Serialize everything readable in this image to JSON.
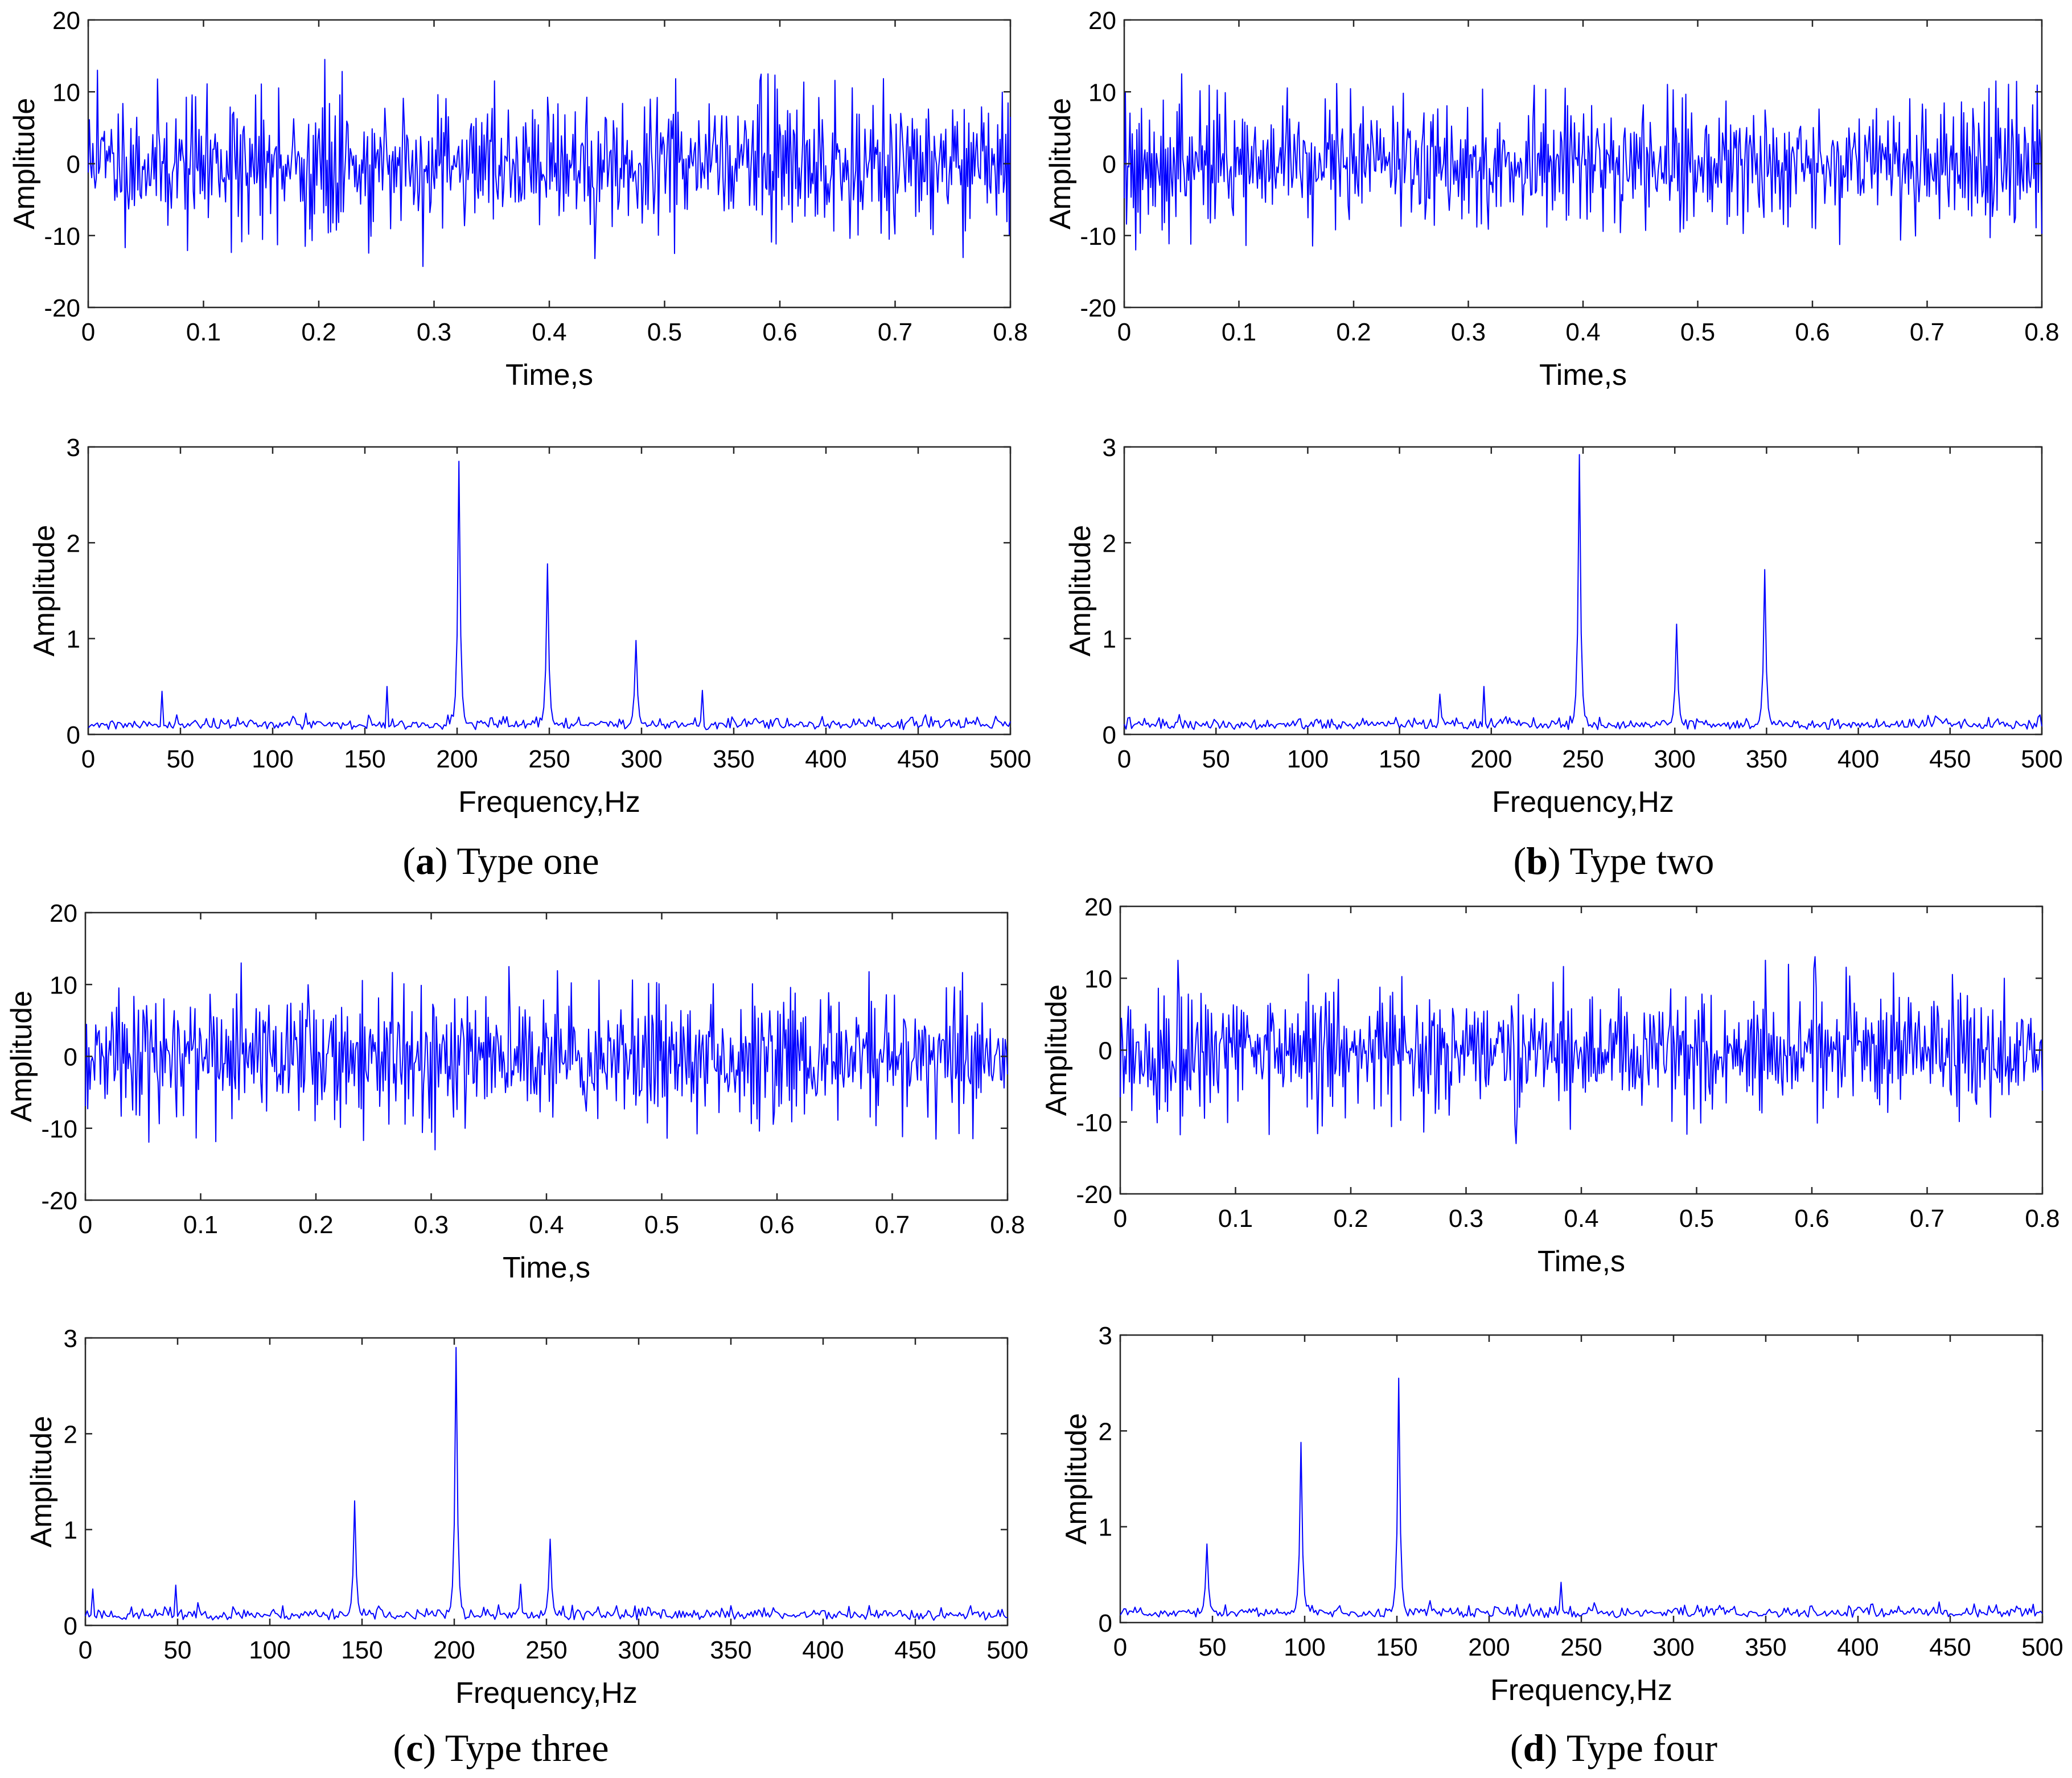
{
  "colors": {
    "trace": "#0000ff",
    "frame": "#262626",
    "text": "#000000"
  },
  "chart_data": [
    {
      "panel": "a",
      "type": "line",
      "id": "a-time",
      "xlabel": "Time,s",
      "ylabel": "Amplitude",
      "xlim": [
        0,
        0.8
      ],
      "ylim": [
        -20,
        20
      ],
      "xticks": [
        0,
        0.1,
        0.2,
        0.3,
        0.4,
        0.5,
        0.6,
        0.7,
        0.8
      ],
      "xtick_labels": [
        "0",
        "0.1",
        "0.2",
        "0.3",
        "0.4",
        "0.5",
        "0.6",
        "0.7",
        "0.8"
      ],
      "yticks": [
        -20,
        -10,
        0,
        10,
        20
      ],
      "ytick_labels": [
        "-20",
        "-10",
        "0",
        "10",
        "20"
      ],
      "signal": {
        "kind": "noise",
        "n": 800,
        "seed": 11,
        "rms": 5.2,
        "max_abs": 14.5,
        "extremes": [
          [
            0.205,
            14.5
          ],
          [
            0.29,
            -14.3
          ],
          [
            0.44,
            -13.2
          ],
          [
            0.188,
            -11.5
          ],
          [
            0.008,
            13
          ],
          [
            0.59,
            12.5
          ]
        ]
      }
    },
    {
      "panel": "a",
      "type": "line",
      "id": "a-freq",
      "xlabel": "Frequency,Hz",
      "ylabel": "Amplitude",
      "xlim": [
        0,
        500
      ],
      "ylim": [
        0,
        3
      ],
      "xticks": [
        0,
        50,
        100,
        150,
        200,
        250,
        300,
        350,
        400,
        450,
        500
      ],
      "xtick_labels": [
        "0",
        "50",
        "100",
        "150",
        "200",
        "250",
        "300",
        "350",
        "400",
        "450",
        "500"
      ],
      "yticks": [
        0,
        1,
        2,
        3
      ],
      "ytick_labels": [
        "0",
        "1",
        "2",
        "3"
      ],
      "spectrum": {
        "n": 500,
        "seed": 21,
        "floor": 0.14,
        "peaks": [
          [
            201,
            2.85
          ],
          [
            249,
            1.78
          ],
          [
            297,
            0.98
          ],
          [
            40,
            0.45
          ],
          [
            162,
            0.5
          ],
          [
            333,
            0.46
          ]
        ]
      }
    },
    {
      "panel": "b",
      "type": "line",
      "id": "b-time",
      "xlabel": "Time,s",
      "ylabel": "Amplitude",
      "xlim": [
        0,
        0.8
      ],
      "ylim": [
        -20,
        20
      ],
      "xticks": [
        0,
        0.1,
        0.2,
        0.3,
        0.4,
        0.5,
        0.6,
        0.7,
        0.8
      ],
      "xtick_labels": [
        "0",
        "0.1",
        "0.2",
        "0.3",
        "0.4",
        "0.5",
        "0.6",
        "0.7",
        "0.8"
      ],
      "yticks": [
        -20,
        -10,
        0,
        10,
        20
      ],
      "ytick_labels": [
        "-20",
        "-10",
        "0",
        "10",
        "20"
      ],
      "signal": {
        "kind": "noise",
        "n": 800,
        "seed": 12,
        "rms": 5.0,
        "max_abs": 12.5,
        "extremes": [
          [
            0.01,
            -12
          ],
          [
            0.05,
            12.5
          ],
          [
            0.76,
            11.5
          ],
          [
            0.058,
            -11.2
          ]
        ]
      }
    },
    {
      "panel": "b",
      "type": "line",
      "id": "b-freq",
      "xlabel": "Frequency,Hz",
      "ylabel": "Amplitude",
      "xlim": [
        0,
        500
      ],
      "ylim": [
        0,
        3
      ],
      "xticks": [
        0,
        50,
        100,
        150,
        200,
        250,
        300,
        350,
        400,
        450,
        500
      ],
      "xtick_labels": [
        "0",
        "50",
        "100",
        "150",
        "200",
        "250",
        "300",
        "350",
        "400",
        "450",
        "500"
      ],
      "yticks": [
        0,
        1,
        2,
        3
      ],
      "ytick_labels": [
        "0",
        "1",
        "2",
        "3"
      ],
      "spectrum": {
        "n": 500,
        "seed": 22,
        "floor": 0.14,
        "peaks": [
          [
            248,
            2.92
          ],
          [
            301,
            1.15
          ],
          [
            349,
            1.72
          ],
          [
            196,
            0.5
          ],
          [
            172,
            0.42
          ]
        ]
      }
    },
    {
      "panel": "c",
      "type": "line",
      "id": "c-time",
      "xlabel": "Time,s",
      "ylabel": "Amplitude",
      "xlim": [
        0,
        0.8
      ],
      "ylim": [
        -20,
        20
      ],
      "xticks": [
        0,
        0.1,
        0.2,
        0.3,
        0.4,
        0.5,
        0.6,
        0.7,
        0.8
      ],
      "xtick_labels": [
        "0",
        "0.1",
        "0.2",
        "0.3",
        "0.4",
        "0.5",
        "0.6",
        "0.7",
        "0.8"
      ],
      "yticks": [
        -20,
        -10,
        0,
        10,
        20
      ],
      "ytick_labels": [
        "-20",
        "-10",
        "0",
        "10",
        "20"
      ],
      "signal": {
        "kind": "noise",
        "n": 800,
        "seed": 13,
        "rms": 5.0,
        "max_abs": 13,
        "extremes": [
          [
            0.135,
            13
          ],
          [
            0.303,
            -13
          ],
          [
            0.367,
            12.5
          ],
          [
            0.738,
            -11.5
          ]
        ]
      }
    },
    {
      "panel": "c",
      "type": "line",
      "id": "c-freq",
      "xlabel": "Frequency,Hz",
      "ylabel": "Amplitude",
      "xlim": [
        0,
        500
      ],
      "ylim": [
        0,
        3
      ],
      "xticks": [
        0,
        50,
        100,
        150,
        200,
        250,
        300,
        350,
        400,
        450,
        500
      ],
      "xtick_labels": [
        "0",
        "50",
        "100",
        "150",
        "200",
        "250",
        "300",
        "350",
        "400",
        "450",
        "500"
      ],
      "yticks": [
        0,
        1,
        2,
        3
      ],
      "ytick_labels": [
        "0",
        "1",
        "2",
        "3"
      ],
      "spectrum": {
        "n": 500,
        "seed": 23,
        "floor": 0.15,
        "peaks": [
          [
            146,
            1.3
          ],
          [
            201,
            2.9
          ],
          [
            252,
            0.9
          ],
          [
            49,
            0.42
          ],
          [
            4,
            0.38
          ],
          [
            236,
            0.43
          ]
        ]
      }
    },
    {
      "panel": "d",
      "type": "line",
      "id": "d-time",
      "xlabel": "Time,s",
      "ylabel": "Amplitude",
      "xlim": [
        0,
        0.8
      ],
      "ylim": [
        -20,
        20
      ],
      "xticks": [
        0,
        0.1,
        0.2,
        0.3,
        0.4,
        0.5,
        0.6,
        0.7,
        0.8
      ],
      "xtick_labels": [
        "0",
        "0.1",
        "0.2",
        "0.3",
        "0.4",
        "0.5",
        "0.6",
        "0.7",
        "0.8"
      ],
      "yticks": [
        -20,
        -10,
        0,
        10,
        20
      ],
      "ytick_labels": [
        "-20",
        "-10",
        "0",
        "10",
        "20"
      ],
      "signal": {
        "kind": "noise",
        "n": 800,
        "seed": 14,
        "rms": 4.8,
        "max_abs": 13,
        "extremes": [
          [
            0.05,
            12.5
          ],
          [
            0.56,
            12.5
          ],
          [
            0.603,
            13
          ],
          [
            0.343,
            -13
          ]
        ]
      }
    },
    {
      "panel": "d",
      "type": "line",
      "id": "d-freq",
      "xlabel": "Frequency,Hz",
      "ylabel": "Amplitude",
      "xlim": [
        0,
        500
      ],
      "ylim": [
        0,
        3
      ],
      "xticks": [
        0,
        50,
        100,
        150,
        200,
        250,
        300,
        350,
        400,
        450,
        500
      ],
      "xtick_labels": [
        "0",
        "50",
        "100",
        "150",
        "200",
        "250",
        "300",
        "350",
        "400",
        "450",
        "500"
      ],
      "yticks": [
        0,
        1,
        2,
        3
      ],
      "ytick_labels": [
        "0",
        "1",
        "2",
        "3"
      ],
      "spectrum": {
        "n": 500,
        "seed": 24,
        "floor": 0.14,
        "peaks": [
          [
            47,
            0.82
          ],
          [
            98,
            1.88
          ],
          [
            151,
            2.55
          ],
          [
            239,
            0.42
          ]
        ]
      }
    }
  ],
  "captions": [
    {
      "panel": "a",
      "letter": "a",
      "text": "Type one"
    },
    {
      "panel": "b",
      "letter": "b",
      "text": "Type two"
    },
    {
      "panel": "c",
      "letter": "c",
      "text": "Type three"
    },
    {
      "panel": "d",
      "letter": "d",
      "text": "Type four"
    }
  ]
}
